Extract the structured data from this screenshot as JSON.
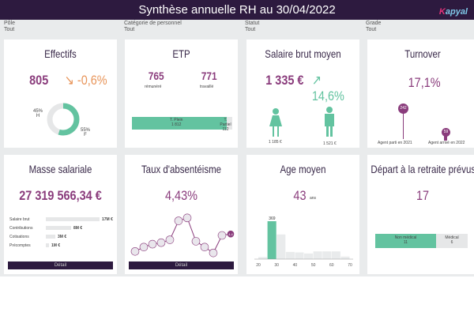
{
  "header": {
    "title": "Synthèse annuelle RH au 30/04/2022",
    "logo": "Kapyal"
  },
  "filters": [
    {
      "label": "Pôle",
      "value": "Tout"
    },
    {
      "label": "Catégorie de personnel",
      "value": "Tout"
    },
    {
      "label": "Statut",
      "value": "Tout"
    },
    {
      "label": "Grade",
      "value": "Tout"
    }
  ],
  "colors": {
    "header": "#2d1a3f",
    "accent": "#8a3c7c",
    "green": "#63c3a0",
    "orange": "#e8955a"
  },
  "effectifs": {
    "title": "Effectifs",
    "value": "805",
    "trend": "↘ -0,6%",
    "h_pct": "45%",
    "h": "H",
    "f_pct": "55%",
    "f": "F",
    "f_share": 55
  },
  "etp": {
    "title": "ETP",
    "remunere": "765",
    "remunere_label": "rémunéré",
    "travaille": "771",
    "travaille_label": "travaillé",
    "plein_label": "T. Plein",
    "plein": "1 812",
    "partiel_label": "T. Partiel",
    "partiel": "112"
  },
  "salaire": {
    "title": "Salaire brut moyen",
    "value": "1 335 €",
    "trend": "↗ 14,6%",
    "femme": "1 185 €",
    "homme": "1 521 €"
  },
  "turnover": {
    "title": "Turnover",
    "value": "17,1%",
    "parti": "242",
    "parti_label": "Agent parti en 2021",
    "arrive": "59",
    "arrive_label": "Agent arrivé en 2022"
  },
  "masse": {
    "title": "Masse salariale",
    "value": "27 319 566,34 €",
    "rows": [
      {
        "label": "Salaire brut",
        "value": "17M €",
        "n": 17
      },
      {
        "label": "Contributions",
        "value": "8M €",
        "n": 8
      },
      {
        "label": "Cotisations",
        "value": "3M €",
        "n": 3
      },
      {
        "label": "Précomptes",
        "value": "1M €",
        "n": 1
      }
    ],
    "button": "Détail"
  },
  "absent": {
    "title": "Taux d'absentéisme",
    "value": "4,43%",
    "last_label": "4,4",
    "button": "Détail"
  },
  "age": {
    "title": "Age moyen",
    "value": "43",
    "unit": "ans",
    "peak_label": "369"
  },
  "retraite": {
    "title": "Départ à la retraite prévus",
    "value": "17",
    "nonmed_label": "Non médical",
    "nonmed": "11",
    "med_label": "Médical",
    "med": "6"
  },
  "chart_data": [
    {
      "type": "line",
      "title": "Taux d'absentéisme",
      "values": [
        3.2,
        3.5,
        3.7,
        3.8,
        4.0,
        5.3,
        5.5,
        3.9,
        3.5,
        3.1,
        4.3,
        4.4
      ]
    },
    {
      "type": "bar",
      "title": "Age moyen",
      "x": [
        20,
        25,
        30,
        35,
        40,
        45,
        50,
        55,
        60,
        65
      ],
      "values": [
        20,
        369,
        240,
        70,
        65,
        55,
        75,
        75,
        75,
        25
      ],
      "xticks": [
        "20",
        "30",
        "40",
        "50",
        "60",
        "70"
      ],
      "xlim": [
        20,
        70
      ]
    }
  ]
}
